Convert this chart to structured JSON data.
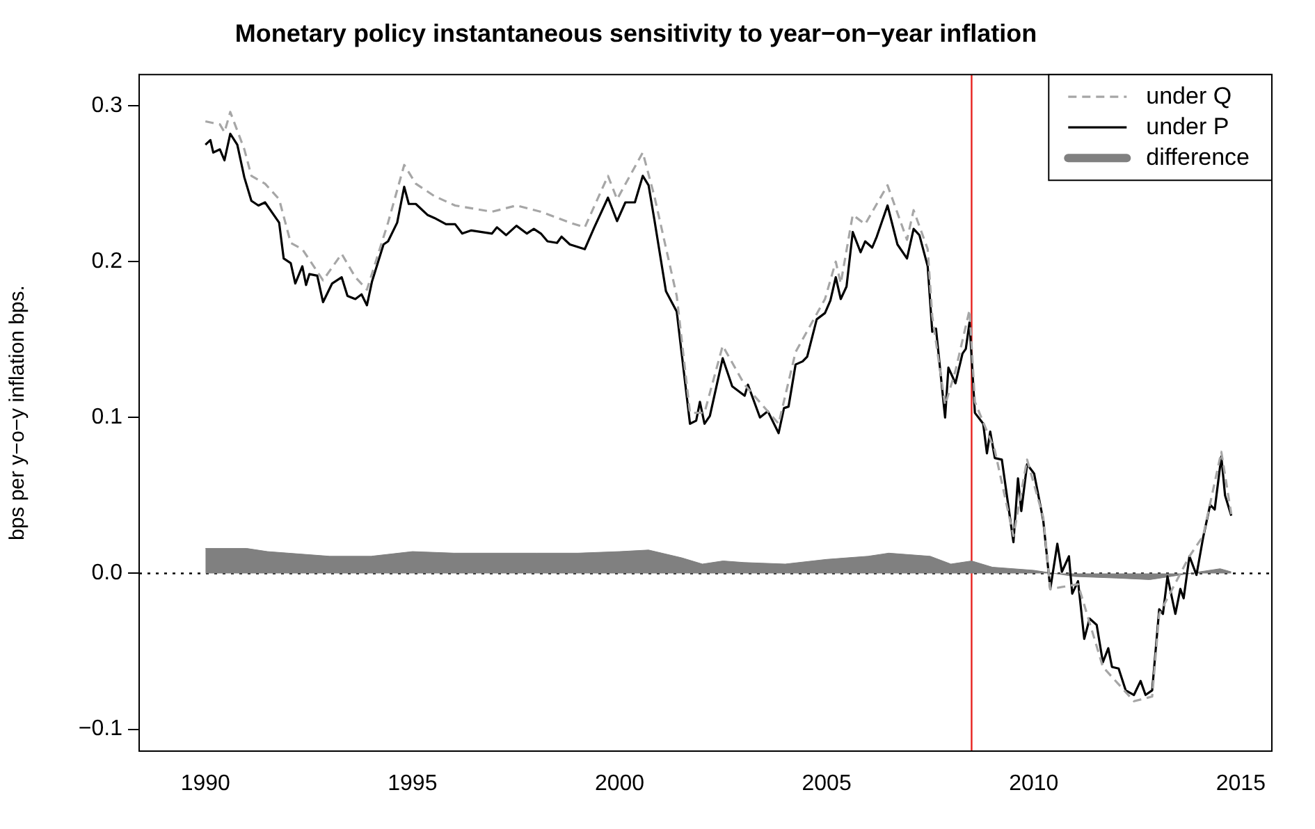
{
  "chart_data": {
    "type": "line",
    "title": "Monetary policy instantaneous sensitivity to year−on−year inflation",
    "ylabel": "bps per y−o−y inflation bps.",
    "xlim": [
      1988.4,
      2015.75
    ],
    "ylim": [
      -0.114,
      0.32
    ],
    "xticks": [
      1990,
      1995,
      2000,
      2005,
      2010,
      2015
    ],
    "yticks": [
      {
        "value": -0.1,
        "label": "−0.1"
      },
      {
        "value": 0,
        "label": "0.0"
      },
      {
        "value": 0.1,
        "label": "0.1"
      },
      {
        "value": 0.2,
        "label": "0.2"
      },
      {
        "value": 0.3,
        "label": "0.3"
      }
    ],
    "grid": false,
    "legend": "top right",
    "marker": "none",
    "ref_lines": [
      {
        "axis": "y",
        "value": 0,
        "color": "#000000",
        "line_style": "dotted"
      },
      {
        "axis": "x",
        "value": 2008.5,
        "color": "#e8211c",
        "line_style": "solid"
      }
    ],
    "series": [
      {
        "name": "under Q",
        "type": "line",
        "color": "#a6a6a6",
        "line_style": "dashed",
        "x": [
          1990.0,
          1990.35,
          1990.46,
          1990.6,
          1990.94,
          1991.11,
          1991.44,
          1991.78,
          1992.06,
          1992.34,
          1992.84,
          1993.29,
          1993.62,
          1993.9,
          1994.41,
          1994.8,
          1995.08,
          1995.53,
          1996.03,
          1996.92,
          1997.51,
          1998.1,
          1998.8,
          1999.16,
          1999.72,
          1999.94,
          2000.56,
          2000.84,
          2001.38,
          2001.7,
          2002.05,
          2002.49,
          2003.02,
          2003.84,
          2004.25,
          2004.96,
          2005.22,
          2005.34,
          2005.63,
          2005.93,
          2006.47,
          2006.94,
          2007.1,
          2007.44,
          2007.55,
          2007.86,
          2008.11,
          2008.45,
          2008.58,
          2009.06,
          2009.51,
          2009.84,
          2010.23,
          2010.4,
          2011.07,
          2011.67,
          2012.42,
          2012.86,
          2013.03,
          2013.76,
          2014.09,
          2014.53,
          2014.77
        ],
        "values": [
          0.29,
          0.288,
          0.283,
          0.296,
          0.272,
          0.255,
          0.25,
          0.24,
          0.212,
          0.208,
          0.188,
          0.205,
          0.19,
          0.182,
          0.225,
          0.262,
          0.25,
          0.242,
          0.236,
          0.232,
          0.236,
          0.232,
          0.225,
          0.222,
          0.255,
          0.24,
          0.27,
          0.242,
          0.178,
          0.103,
          0.103,
          0.146,
          0.121,
          0.096,
          0.142,
          0.176,
          0.2,
          0.186,
          0.23,
          0.224,
          0.249,
          0.214,
          0.233,
          0.208,
          0.165,
          0.108,
          0.13,
          0.169,
          0.11,
          0.079,
          0.024,
          0.073,
          0.036,
          -0.01,
          -0.007,
          -0.06,
          -0.082,
          -0.079,
          -0.026,
          0.011,
          0.024,
          0.078,
          0.038
        ]
      },
      {
        "name": "under P",
        "type": "line",
        "color": "#000000",
        "line_style": "solid",
        "x": [
          1990.0,
          1990.12,
          1990.19,
          1990.35,
          1990.46,
          1990.6,
          1990.77,
          1990.94,
          1991.11,
          1991.28,
          1991.44,
          1991.78,
          1991.89,
          1992.06,
          1992.17,
          1992.34,
          1992.43,
          1992.51,
          1992.7,
          1992.84,
          1993.06,
          1993.29,
          1993.43,
          1993.62,
          1993.77,
          1993.9,
          1994.02,
          1994.3,
          1994.41,
          1994.63,
          1994.8,
          1994.91,
          1995.08,
          1995.36,
          1995.53,
          1995.81,
          1996.03,
          1996.2,
          1996.42,
          1996.92,
          1997.04,
          1997.26,
          1997.51,
          1997.76,
          1997.93,
          1998.1,
          1998.26,
          1998.49,
          1998.6,
          1998.8,
          1999.16,
          1999.39,
          1999.72,
          1999.94,
          2000.14,
          2000.37,
          2000.56,
          2000.7,
          2000.84,
          2001.12,
          2001.38,
          2001.7,
          2001.85,
          2001.94,
          2002.05,
          2002.18,
          2002.49,
          2002.72,
          2003.02,
          2003.1,
          2003.39,
          2003.58,
          2003.84,
          2003.97,
          2004.08,
          2004.25,
          2004.42,
          2004.53,
          2004.76,
          2004.96,
          2005.09,
          2005.22,
          2005.34,
          2005.48,
          2005.63,
          2005.82,
          2005.93,
          2006.1,
          2006.21,
          2006.47,
          2006.71,
          2006.94,
          2007.1,
          2007.24,
          2007.44,
          2007.55,
          2007.64,
          2007.86,
          2007.94,
          2008.11,
          2008.28,
          2008.36,
          2008.45,
          2008.58,
          2008.78,
          2008.87,
          2008.95,
          2009.06,
          2009.23,
          2009.51,
          2009.62,
          2009.7,
          2009.84,
          2010.01,
          2010.23,
          2010.4,
          2010.57,
          2010.68,
          2010.85,
          2010.93,
          2011.07,
          2011.22,
          2011.35,
          2011.52,
          2011.67,
          2011.8,
          2011.89,
          2012.05,
          2012.22,
          2012.42,
          2012.58,
          2012.7,
          2012.86,
          2013.03,
          2013.12,
          2013.23,
          2013.42,
          2013.54,
          2013.62,
          2013.76,
          2013.93,
          2014.09,
          2014.26,
          2014.37,
          2014.53,
          2014.62,
          2014.77
        ],
        "values": [
          0.275,
          0.278,
          0.27,
          0.272,
          0.265,
          0.282,
          0.275,
          0.254,
          0.239,
          0.236,
          0.238,
          0.225,
          0.202,
          0.199,
          0.186,
          0.197,
          0.185,
          0.192,
          0.191,
          0.174,
          0.186,
          0.19,
          0.178,
          0.176,
          0.179,
          0.172,
          0.187,
          0.211,
          0.213,
          0.225,
          0.248,
          0.237,
          0.237,
          0.23,
          0.228,
          0.224,
          0.224,
          0.218,
          0.22,
          0.218,
          0.222,
          0.217,
          0.223,
          0.218,
          0.221,
          0.218,
          0.213,
          0.212,
          0.216,
          0.211,
          0.208,
          0.222,
          0.241,
          0.226,
          0.238,
          0.238,
          0.255,
          0.249,
          0.227,
          0.181,
          0.168,
          0.096,
          0.098,
          0.11,
          0.096,
          0.101,
          0.138,
          0.12,
          0.114,
          0.121,
          0.1,
          0.104,
          0.09,
          0.106,
          0.107,
          0.134,
          0.136,
          0.139,
          0.163,
          0.167,
          0.175,
          0.19,
          0.176,
          0.184,
          0.219,
          0.206,
          0.213,
          0.209,
          0.216,
          0.236,
          0.211,
          0.202,
          0.221,
          0.217,
          0.197,
          0.155,
          0.157,
          0.1,
          0.132,
          0.122,
          0.141,
          0.144,
          0.161,
          0.103,
          0.096,
          0.077,
          0.091,
          0.074,
          0.073,
          0.02,
          0.061,
          0.04,
          0.07,
          0.064,
          0.034,
          -0.01,
          0.019,
          0.001,
          0.011,
          -0.013,
          -0.005,
          -0.042,
          -0.029,
          -0.033,
          -0.057,
          -0.048,
          -0.06,
          -0.061,
          -0.075,
          -0.078,
          -0.069,
          -0.078,
          -0.075,
          -0.023,
          -0.026,
          -0.002,
          -0.026,
          -0.01,
          -0.016,
          0.011,
          -0.001,
          0.023,
          0.044,
          0.041,
          0.075,
          0.05,
          0.037
        ]
      },
      {
        "name": "difference",
        "type": "area",
        "color": "#808080",
        "x": [
          1990.0,
          1990.5,
          1991.0,
          1991.5,
          1992.0,
          1993.0,
          1994.0,
          1995.0,
          1996.0,
          1997.0,
          1998.0,
          1999.0,
          2000.0,
          2000.7,
          2001.5,
          2002.0,
          2002.5,
          2003.0,
          2004.0,
          2005.0,
          2006.0,
          2006.5,
          2007.5,
          2008.0,
          2008.5,
          2009.0,
          2009.5,
          2010.0,
          2010.5,
          2011.0,
          2012.0,
          2012.8,
          2013.3,
          2014.0,
          2014.5,
          2014.77
        ],
        "values": [
          0.016,
          0.016,
          0.016,
          0.014,
          0.013,
          0.011,
          0.011,
          0.014,
          0.013,
          0.013,
          0.013,
          0.013,
          0.014,
          0.015,
          0.01,
          0.006,
          0.008,
          0.007,
          0.006,
          0.009,
          0.011,
          0.013,
          0.011,
          0.006,
          0.008,
          0.004,
          0.003,
          0.002,
          0.0,
          -0.002,
          -0.003,
          -0.004,
          -0.002,
          0.001,
          0.003,
          0.001
        ]
      }
    ]
  }
}
